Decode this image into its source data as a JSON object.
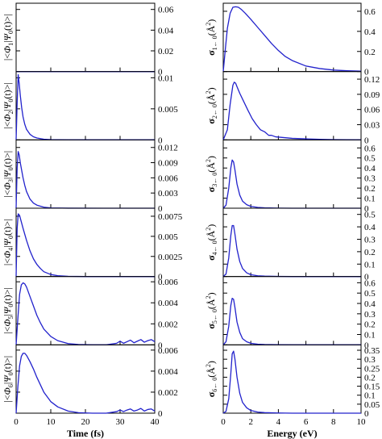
{
  "colors": {
    "line": "#2222cc",
    "axis": "#000000"
  },
  "chart_data": [
    {
      "type": "line",
      "ylabel_sym": "Φ",
      "ylabel_sub": "1",
      "xlim": [
        0,
        40
      ],
      "ylim": [
        0,
        0.066
      ],
      "yticks": [
        "0",
        "0.02",
        "0.04",
        "0.06"
      ],
      "yticks_val": [
        0,
        0.02,
        0.04,
        0.06
      ],
      "xticks": [],
      "xticks_val": [],
      "xlabel": "",
      "series": [
        {
          "x": [
            0,
            40
          ],
          "y": [
            0,
            0
          ]
        }
      ]
    },
    {
      "type": "line",
      "ylabel_sym": "Φ",
      "ylabel_sub": "2",
      "xlim": [
        0,
        40
      ],
      "ylim": [
        0,
        0.011
      ],
      "yticks": [
        "0",
        "0.005",
        "0.01"
      ],
      "yticks_val": [
        0,
        0.005,
        0.01
      ],
      "xticks": [],
      "xticks_val": [],
      "xlabel": "",
      "series": [
        {
          "x": [
            0,
            0.3,
            0.6,
            0.9,
            1.2,
            1.6,
            2,
            2.5,
            3,
            4,
            5,
            6,
            8,
            10,
            15,
            20,
            40
          ],
          "y": [
            0,
            0.006,
            0.0105,
            0.009,
            0.0072,
            0.0052,
            0.0037,
            0.0025,
            0.0017,
            0.0009,
            0.0005,
            0.0003,
            0.0001,
            4e-05,
            1e-05,
            0,
            0
          ]
        }
      ]
    },
    {
      "type": "line",
      "ylabel_sym": "Φ",
      "ylabel_sub": "3",
      "xlim": [
        0,
        40
      ],
      "ylim": [
        0,
        0.0135
      ],
      "yticks": [
        "0",
        "0.003",
        "0.006",
        "0.009",
        "0.012"
      ],
      "yticks_val": [
        0,
        0.003,
        0.006,
        0.009,
        0.012
      ],
      "xticks": [],
      "xticks_val": [],
      "xlabel": "",
      "series": [
        {
          "x": [
            0,
            0.3,
            0.6,
            0.9,
            1.2,
            1.6,
            2,
            2.5,
            3,
            4,
            5,
            6,
            8,
            10,
            15,
            40
          ],
          "y": [
            0,
            0.008,
            0.0112,
            0.0105,
            0.009,
            0.0075,
            0.006,
            0.0045,
            0.0033,
            0.0018,
            0.001,
            0.0006,
            0.0002,
            6e-05,
            1e-05,
            0
          ]
        }
      ]
    },
    {
      "type": "line",
      "ylabel_sym": "Φ",
      "ylabel_sub": "4",
      "xlim": [
        0,
        40
      ],
      "ylim": [
        0,
        0.0085
      ],
      "yticks": [
        "0",
        "0.0025",
        "0.005",
        "0.0075"
      ],
      "yticks_val": [
        0,
        0.0025,
        0.005,
        0.0075
      ],
      "xticks": [],
      "xticks_val": [],
      "xlabel": "",
      "series": [
        {
          "x": [
            0,
            0.3,
            0.6,
            1,
            1.5,
            2,
            3,
            4,
            5,
            6,
            7,
            8,
            10,
            12,
            15,
            20,
            40
          ],
          "y": [
            0,
            0.006,
            0.0078,
            0.0076,
            0.0068,
            0.006,
            0.0045,
            0.0032,
            0.0022,
            0.0015,
            0.001,
            0.0006,
            0.00025,
            0.0001,
            3e-05,
            0,
            0
          ]
        }
      ]
    },
    {
      "type": "line",
      "ylabel_sym": "Φ",
      "ylabel_sub": "5",
      "xlim": [
        0,
        40
      ],
      "ylim": [
        0,
        0.0065
      ],
      "yticks": [
        "0",
        "0.002",
        "0.004",
        "0.006"
      ],
      "yticks_val": [
        0,
        0.002,
        0.004,
        0.006
      ],
      "xticks": [],
      "xticks_val": [],
      "xlabel": "",
      "series": [
        {
          "x": [
            0,
            0.5,
            1,
            1.5,
            2,
            2.5,
            3,
            4,
            5,
            6,
            7,
            8,
            10,
            12,
            15,
            18,
            22,
            26,
            29,
            30,
            31,
            32,
            33,
            34,
            35,
            36,
            37,
            38,
            39,
            40
          ],
          "y": [
            0,
            0.0025,
            0.0048,
            0.0057,
            0.0059,
            0.0058,
            0.0055,
            0.0046,
            0.0037,
            0.0028,
            0.0021,
            0.0015,
            0.0008,
            0.0004,
            0.00012,
            3e-05,
            0,
            0,
            0.00015,
            0.00035,
            0.00015,
            0.0003,
            0.00045,
            0.0002,
            0.00035,
            0.0005,
            0.00025,
            0.0004,
            0.0005,
            0.0003
          ]
        }
      ]
    },
    {
      "type": "line",
      "ylabel_sym": "Φ",
      "ylabel_sub": "6",
      "xlim": [
        0,
        40
      ],
      "ylim": [
        0,
        0.0065
      ],
      "yticks": [
        "0",
        "0.002",
        "0.004",
        "0.006"
      ],
      "yticks_val": [
        0,
        0.002,
        0.004,
        0.006
      ],
      "xticks": [
        "0",
        "10",
        "20",
        "30",
        "40"
      ],
      "xticks_val": [
        0,
        10,
        20,
        30,
        40
      ],
      "xlabel": "Time (fs)",
      "series": [
        {
          "x": [
            0,
            0.5,
            1,
            1.5,
            2,
            2.5,
            3,
            4,
            5,
            6,
            7,
            8,
            10,
            12,
            15,
            18,
            22,
            26,
            29,
            30,
            31,
            32,
            33,
            34,
            35,
            36,
            37,
            38,
            39,
            40
          ],
          "y": [
            0,
            0.0025,
            0.0045,
            0.0054,
            0.0057,
            0.0057,
            0.0055,
            0.0049,
            0.0042,
            0.0034,
            0.0027,
            0.002,
            0.0011,
            0.0006,
            0.0002,
            5e-05,
            0,
            0,
            0.00015,
            0.0003,
            0.00015,
            0.0003,
            0.0004,
            0.0002,
            0.0003,
            0.00045,
            0.0002,
            0.00035,
            0.0004,
            0.0002
          ]
        }
      ]
    },
    {
      "type": "line",
      "ylabel_sub": "1← 0",
      "xlim": [
        0,
        10
      ],
      "ylim": [
        0,
        0.68
      ],
      "yticks": [
        "0",
        "0.2",
        "0.4",
        "0.6"
      ],
      "yticks_val": [
        0,
        0.2,
        0.4,
        0.6
      ],
      "xticks": [],
      "xticks_val": [],
      "xlabel": "",
      "series": [
        {
          "x": [
            0,
            0.15,
            0.3,
            0.5,
            0.7,
            0.9,
            1.1,
            1.3,
            1.6,
            2,
            2.5,
            3,
            3.5,
            4,
            4.5,
            5,
            6,
            7,
            8,
            9,
            10
          ],
          "y": [
            0,
            0.22,
            0.43,
            0.58,
            0.64,
            0.645,
            0.64,
            0.62,
            0.58,
            0.52,
            0.44,
            0.36,
            0.28,
            0.21,
            0.15,
            0.11,
            0.055,
            0.03,
            0.015,
            0.008,
            0.004
          ]
        }
      ]
    },
    {
      "type": "line",
      "ylabel_sub": "2← 0",
      "xlim": [
        0,
        10
      ],
      "ylim": [
        0,
        0.135
      ],
      "yticks": [
        "0",
        "0.03",
        "0.06",
        "0.09",
        "0.12"
      ],
      "yticks_val": [
        0,
        0.03,
        0.06,
        0.09,
        0.12
      ],
      "xticks": [],
      "xticks_val": [],
      "xlabel": "",
      "series": [
        {
          "x": [
            0,
            0.3,
            0.5,
            0.7,
            0.8,
            0.9,
            1.0,
            1.2,
            1.5,
            1.8,
            2.1,
            2.4,
            2.7,
            3.0,
            3.3,
            3.5,
            3.8,
            4.2,
            5,
            6,
            7,
            8,
            9,
            10
          ],
          "y": [
            0,
            0.02,
            0.07,
            0.108,
            0.114,
            0.112,
            0.105,
            0.092,
            0.075,
            0.058,
            0.042,
            0.03,
            0.02,
            0.016,
            0.009,
            0.009,
            0.006,
            0.005,
            0.003,
            0.002,
            0.001,
            0.0005,
            0.0002,
            0
          ]
        }
      ]
    },
    {
      "type": "line",
      "ylabel_sub": "3← 0",
      "xlim": [
        0,
        10
      ],
      "ylim": [
        0,
        0.68
      ],
      "yticks": [
        "0",
        "0.1",
        "0.2",
        "0.3",
        "0.4",
        "0.5",
        "0.6"
      ],
      "yticks_val": [
        0,
        0.1,
        0.2,
        0.3,
        0.4,
        0.5,
        0.6
      ],
      "xticks": [],
      "xticks_val": [],
      "xlabel": "",
      "series": [
        {
          "x": [
            0,
            0.2,
            0.4,
            0.55,
            0.65,
            0.75,
            0.85,
            1.0,
            1.2,
            1.4,
            1.7,
            2.0,
            2.5,
            3,
            4,
            5,
            10
          ],
          "y": [
            0,
            0.03,
            0.2,
            0.4,
            0.48,
            0.46,
            0.38,
            0.24,
            0.13,
            0.07,
            0.035,
            0.018,
            0.008,
            0.004,
            0.001,
            0,
            0
          ]
        }
      ]
    },
    {
      "type": "line",
      "ylabel_sub": "4← 0",
      "xlim": [
        0,
        10
      ],
      "ylim": [
        0,
        0.55
      ],
      "yticks": [
        "0",
        "0.1",
        "0.2",
        "0.3",
        "0.4",
        "0.5"
      ],
      "yticks_val": [
        0,
        0.1,
        0.2,
        0.3,
        0.4,
        0.5
      ],
      "xticks": [],
      "xticks_val": [],
      "xlabel": "",
      "series": [
        {
          "x": [
            0,
            0.2,
            0.4,
            0.55,
            0.65,
            0.75,
            0.85,
            1.0,
            1.2,
            1.4,
            1.7,
            2.0,
            2.5,
            3,
            4,
            5,
            10
          ],
          "y": [
            0,
            0.02,
            0.15,
            0.33,
            0.41,
            0.41,
            0.34,
            0.22,
            0.12,
            0.065,
            0.03,
            0.015,
            0.006,
            0.003,
            0.001,
            0,
            0
          ]
        }
      ]
    },
    {
      "type": "line",
      "ylabel_sub": "5← 0",
      "xlim": [
        0,
        10
      ],
      "ylim": [
        0,
        0.66
      ],
      "yticks": [
        "0",
        "0.1",
        "0.2",
        "0.3",
        "0.4",
        "0.5",
        "0.6"
      ],
      "yticks_val": [
        0,
        0.1,
        0.2,
        0.3,
        0.4,
        0.5,
        0.6
      ],
      "xticks": [],
      "xticks_val": [],
      "xlabel": "",
      "series": [
        {
          "x": [
            0,
            0.2,
            0.4,
            0.55,
            0.65,
            0.75,
            0.85,
            1.0,
            1.2,
            1.4,
            1.7,
            2.0,
            2.5,
            3,
            4,
            5,
            10
          ],
          "y": [
            0,
            0.03,
            0.18,
            0.38,
            0.45,
            0.44,
            0.36,
            0.22,
            0.12,
            0.06,
            0.03,
            0.015,
            0.006,
            0.003,
            0.001,
            0,
            0
          ]
        }
      ]
    },
    {
      "type": "line",
      "ylabel_sub": "6← 0",
      "xlim": [
        0,
        10
      ],
      "ylim": [
        0,
        0.38
      ],
      "yticks": [
        "0",
        "0.05",
        "0.1",
        "0.15",
        "0.2",
        "0.25",
        "0.3",
        "0.35"
      ],
      "yticks_val": [
        0,
        0.05,
        0.1,
        0.15,
        0.2,
        0.25,
        0.3,
        0.35
      ],
      "xticks": [
        "0",
        "2",
        "4",
        "6",
        "8",
        "10"
      ],
      "xticks_val": [
        0,
        2,
        4,
        6,
        8,
        10
      ],
      "xlabel": "Energy (eV)",
      "series": [
        {
          "x": [
            0,
            0.2,
            0.4,
            0.55,
            0.65,
            0.75,
            0.85,
            1.0,
            1.2,
            1.4,
            1.7,
            2.0,
            2.5,
            3,
            4,
            5,
            10
          ],
          "y": [
            0,
            0.01,
            0.08,
            0.22,
            0.33,
            0.345,
            0.3,
            0.2,
            0.11,
            0.06,
            0.03,
            0.015,
            0.006,
            0.003,
            0.001,
            0,
            0
          ]
        }
      ]
    }
  ]
}
